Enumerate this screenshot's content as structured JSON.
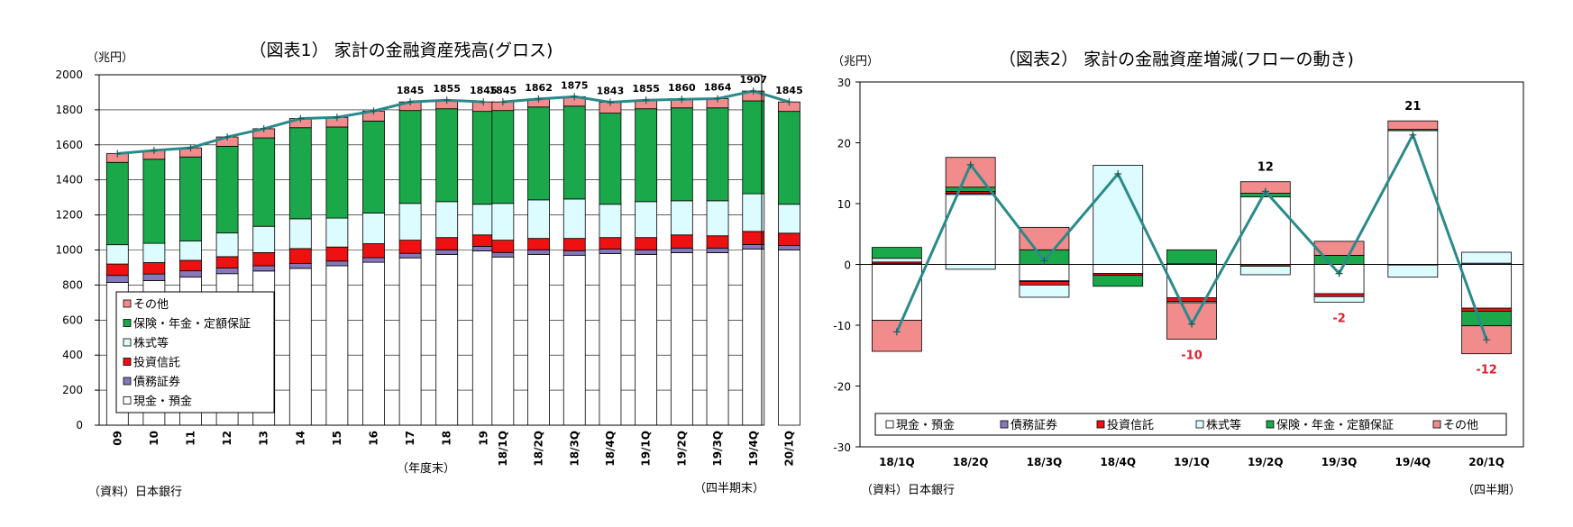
{
  "colors": {
    "cash": "#ffffff",
    "bonds": "#8877bb",
    "trusts": "#ee1111",
    "stocks": "#ddfcff",
    "insurance": "#1aa84a",
    "other": "#f28b8b",
    "line": "#2a8a8a",
    "frame": "#000000"
  },
  "chart_data": [
    {
      "type": "bar",
      "stacked": true,
      "title": "（図表1） 家計の金融資産残高(グロス)",
      "unit_label": "（兆円）",
      "ylim": [
        0,
        2000
      ],
      "yticks": [
        "0",
        "200",
        "400",
        "600",
        "800",
        "1000",
        "1200",
        "1400",
        "1600",
        "1800",
        "2000"
      ],
      "grid": true,
      "legend_position": "bottom-left",
      "annual_categories": [
        "09",
        "10",
        "11",
        "12",
        "13",
        "14",
        "15",
        "16",
        "17",
        "18",
        "19"
      ],
      "quarter_categories": [
        "18/1Q",
        "18/2Q",
        "18/3Q",
        "18/4Q",
        "19/1Q",
        "19/2Q",
        "19/3Q",
        "19/4Q",
        "20/1Q"
      ],
      "categories": [
        "09",
        "10",
        "11",
        "12",
        "13",
        "14",
        "15",
        "16",
        "17",
        "18",
        "19",
        "18/1Q",
        "18/2Q",
        "18/3Q",
        "18/4Q",
        "19/1Q",
        "19/2Q",
        "19/3Q",
        "19/4Q",
        "20/1Q"
      ],
      "series": [
        {
          "name": "現金・預金",
          "key": "cash",
          "values": [
            815,
            825,
            845,
            865,
            880,
            895,
            910,
            930,
            955,
            975,
            995,
            960,
            975,
            970,
            980,
            975,
            985,
            985,
            1005,
            1000
          ]
        },
        {
          "name": "債務証券",
          "key": "bonds",
          "values": [
            40,
            38,
            36,
            32,
            30,
            28,
            27,
            26,
            26,
            26,
            26,
            26,
            26,
            26,
            26,
            26,
            26,
            26,
            26,
            26
          ]
        },
        {
          "name": "投資信託",
          "key": "trusts",
          "values": [
            65,
            65,
            60,
            65,
            75,
            85,
            80,
            80,
            75,
            70,
            65,
            70,
            65,
            70,
            65,
            70,
            75,
            70,
            75,
            70
          ]
        },
        {
          "name": "株式等",
          "key": "stocks",
          "values": [
            110,
            110,
            110,
            135,
            150,
            170,
            165,
            175,
            210,
            205,
            175,
            210,
            220,
            225,
            190,
            205,
            195,
            200,
            215,
            165
          ]
        },
        {
          "name": "保険・年金・定額保証",
          "key": "insurance",
          "values": [
            470,
            480,
            480,
            495,
            505,
            520,
            520,
            525,
            530,
            530,
            530,
            530,
            530,
            530,
            520,
            530,
            530,
            530,
            530,
            530
          ]
        },
        {
          "name": "その他",
          "key": "other",
          "values": [
            50,
            50,
            52,
            53,
            52,
            52,
            55,
            57,
            49,
            49,
            54,
            49,
            46,
            54,
            62,
            49,
            49,
            53,
            56,
            54
          ]
        }
      ],
      "line": {
        "values": [
          1550,
          1568,
          1583,
          1645,
          1692,
          1750,
          1757,
          1793,
          1845,
          1855,
          1845,
          1845,
          1862,
          1875,
          1843,
          1855,
          1860,
          1864,
          1907,
          1845
        ]
      },
      "annual_labels": [
        "",
        "",
        "",
        "",
        "",
        "",
        "",
        "",
        "1845",
        "1855",
        "1845"
      ],
      "quarter_labels": [
        "1845",
        "1862",
        "1875",
        "1843",
        "1855",
        "1860",
        "1864",
        "1907",
        "1845"
      ],
      "annual_axis_note": "（年度末）",
      "quarter_axis_note": "（四半期末）",
      "source": "（資料）日本銀行"
    },
    {
      "type": "bar",
      "stacked": true,
      "title": "（図表2） 家計の金融資産増減(フローの動き)",
      "unit_label": "（兆円）",
      "ylim": [
        -30,
        30
      ],
      "yticks": [
        "-30",
        "-20",
        "-10",
        "0",
        "10",
        "20",
        "30"
      ],
      "grid": false,
      "legend_position": "bottom",
      "categories": [
        "18/1Q",
        "18/2Q",
        "18/3Q",
        "18/4Q",
        "19/1Q",
        "19/2Q",
        "19/3Q",
        "19/4Q",
        "20/1Q"
      ],
      "series": [
        {
          "name": "現金・預金",
          "key": "cash",
          "values": [
            -9.2,
            11.5,
            -2.7,
            -1.5,
            -5.5,
            11.1,
            -4.8,
            22.0,
            -7.2
          ]
        },
        {
          "name": "債務証券",
          "key": "bonds",
          "values": [
            0.1,
            0.2,
            -0.1,
            0.0,
            0.1,
            0.0,
            0.0,
            -0.1,
            0.2
          ]
        },
        {
          "name": "投資信託",
          "key": "trusts",
          "values": [
            0.3,
            0.3,
            -0.6,
            -0.3,
            -0.6,
            -0.3,
            -0.5,
            0.0,
            -0.5
          ]
        },
        {
          "name": "株式等",
          "key": "stocks",
          "values": [
            0.6,
            -0.8,
            -2.0,
            16.3,
            -0.2,
            -1.4,
            -0.9,
            -2.0,
            1.8
          ]
        },
        {
          "name": "保険・年金・定額保証",
          "key": "insurance",
          "values": [
            1.8,
            0.7,
            2.4,
            -1.8,
            2.3,
            0.6,
            1.5,
            0.2,
            -2.4
          ]
        },
        {
          "name": "その他",
          "key": "other",
          "values": [
            -5.1,
            4.9,
            3.7,
            0.0,
            -6.0,
            1.9,
            2.3,
            1.4,
            -4.6
          ]
        }
      ],
      "line": {
        "values": [
          -11.1,
          16.4,
          0.6,
          14.9,
          -9.8,
          12.0,
          -1.5,
          21.3,
          -12.4
        ]
      },
      "point_labels": [
        "",
        "",
        "",
        "",
        "-10",
        "12",
        "-2",
        "21",
        "-12"
      ],
      "axis_note": "（四半期）",
      "source": "（資料）日本銀行"
    }
  ]
}
